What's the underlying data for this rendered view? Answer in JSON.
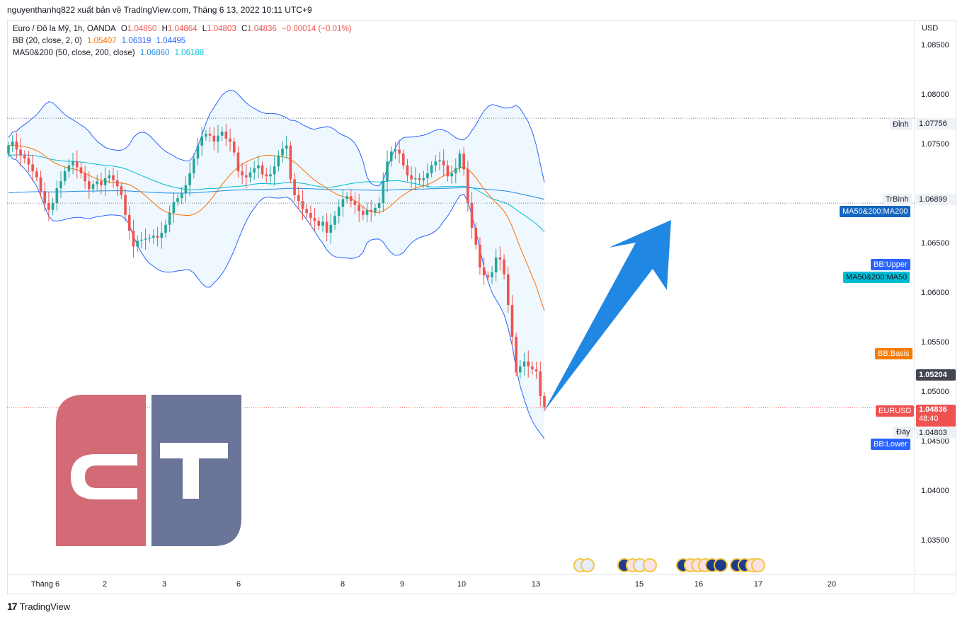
{
  "header": {
    "publisher_line": "nguyenthanhq822 xuất bản về TradingView.com, Tháng 6 13, 2022 10:11 UTC+9"
  },
  "legend": {
    "symbol": "Euro / Đô la Mỹ, 1h, OANDA",
    "o_label": "O",
    "o_value": "1.04850",
    "h_label": "H",
    "h_value": "1.04864",
    "l_label": "L",
    "l_value": "1.04803",
    "c_label": "C",
    "c_value": "1.04836",
    "change": "−0.00014 (−0.01%)",
    "bb_label": "BB (20, close, 2, 0)",
    "bb_basis": "1.05407",
    "bb_upper": "1.06319",
    "bb_lower": "1.04495",
    "ma_label": "MA50&200 (50, close, 200, close)",
    "ma200": "1.06860",
    "ma50": "1.06188"
  },
  "price_axis": {
    "currency": "USD",
    "ticks": [
      "1.08500",
      "1.08000",
      "1.07500",
      "1.06500",
      "1.06000",
      "1.05500",
      "1.05000",
      "1.04500",
      "1.04000",
      "1.03500"
    ]
  },
  "tags": {
    "high_label": "Đỉnh",
    "high_value": "1.07756",
    "mid_label": "TrBình",
    "mid_value": "1.06899",
    "ma200_tag": "MA50&200:MA200",
    "bb_upper_tag": "BB:Upper",
    "ma50_tag": "MA50&200:MA50",
    "bb_basis_tag": "BB:Basis",
    "crosshair_value": "1.05204",
    "symbol_tag": "EURUSD",
    "last_price": "1.04836",
    "countdown": "48:40",
    "low_label": "Đáy",
    "low_value": "1.04803",
    "bb_lower_tag": "BB:Lower"
  },
  "time_axis": {
    "labels": [
      "Tháng 6",
      "2",
      "3",
      "6",
      "8",
      "9",
      "10",
      "13",
      "15",
      "16",
      "17",
      "20"
    ]
  },
  "footer": {
    "brand": "TradingView"
  },
  "colors": {
    "up": "#26a69a",
    "down": "#ef5350",
    "bb": "#2962ff",
    "bb_basis": "#ff6d00",
    "ma50": "#00bcd4",
    "ma200": "#1e88e5",
    "arrow": "#2196f3",
    "logo_left": "#d36b76",
    "logo_right": "#6b7599"
  },
  "chart_data": {
    "type": "candlestick",
    "symbol": "EURUSD",
    "timeframe": "1h",
    "ylim": [
      1.0315,
      1.0875
    ],
    "x_labels": [
      "Tháng 6",
      "2",
      "3",
      "6",
      "8",
      "9",
      "10",
      "13"
    ],
    "closes": [
      1.0748,
      1.0752,
      1.0744,
      1.0738,
      1.0735,
      1.0729,
      1.0722,
      1.0716,
      1.0702,
      1.069,
      1.0683,
      1.069,
      1.0705,
      1.0712,
      1.0722,
      1.0728,
      1.0732,
      1.0726,
      1.072,
      1.0712,
      1.0704,
      1.0709,
      1.0712,
      1.0708,
      1.0715,
      1.0718,
      1.0713,
      1.0707,
      1.0698,
      1.0678,
      1.0662,
      1.0646,
      1.0652,
      1.0653,
      1.0654,
      1.0655,
      1.0657,
      1.0655,
      1.066,
      1.0668,
      1.068,
      1.0691,
      1.0695,
      1.07,
      1.0708,
      1.072,
      1.0735,
      1.0748,
      1.0757,
      1.076,
      1.0758,
      1.0752,
      1.0758,
      1.0762,
      1.0755,
      1.0752,
      1.0741,
      1.0722,
      1.0718,
      1.0716,
      1.0721,
      1.0725,
      1.0728,
      1.0719,
      1.0717,
      1.0719,
      1.0727,
      1.0738,
      1.0745,
      1.0748,
      1.0714,
      1.0698,
      1.0692,
      1.0684,
      1.068,
      1.0675,
      1.0672,
      1.0667,
      1.0671,
      1.066,
      1.0668,
      1.0677,
      1.0686,
      1.0694,
      1.0697,
      1.0692,
      1.0688,
      1.0682,
      1.0678,
      1.0683,
      1.0681,
      1.0685,
      1.069,
      1.0712,
      1.0732,
      1.0742,
      1.0744,
      1.074,
      1.0728,
      1.0718,
      1.0714,
      1.0715,
      1.0713,
      1.0715,
      1.072,
      1.0728,
      1.0732,
      1.0733,
      1.0728,
      1.0717,
      1.072,
      1.0725,
      1.074,
      1.0724,
      1.069,
      1.0665,
      1.0648,
      1.0625,
      1.0617,
      1.0615,
      1.062,
      1.0635,
      1.0633,
      1.0618,
      1.0587,
      1.0555,
      1.0519,
      1.0525,
      1.053,
      1.0525,
      1.0522,
      1.052,
      1.0495,
      1.0484
    ]
  }
}
